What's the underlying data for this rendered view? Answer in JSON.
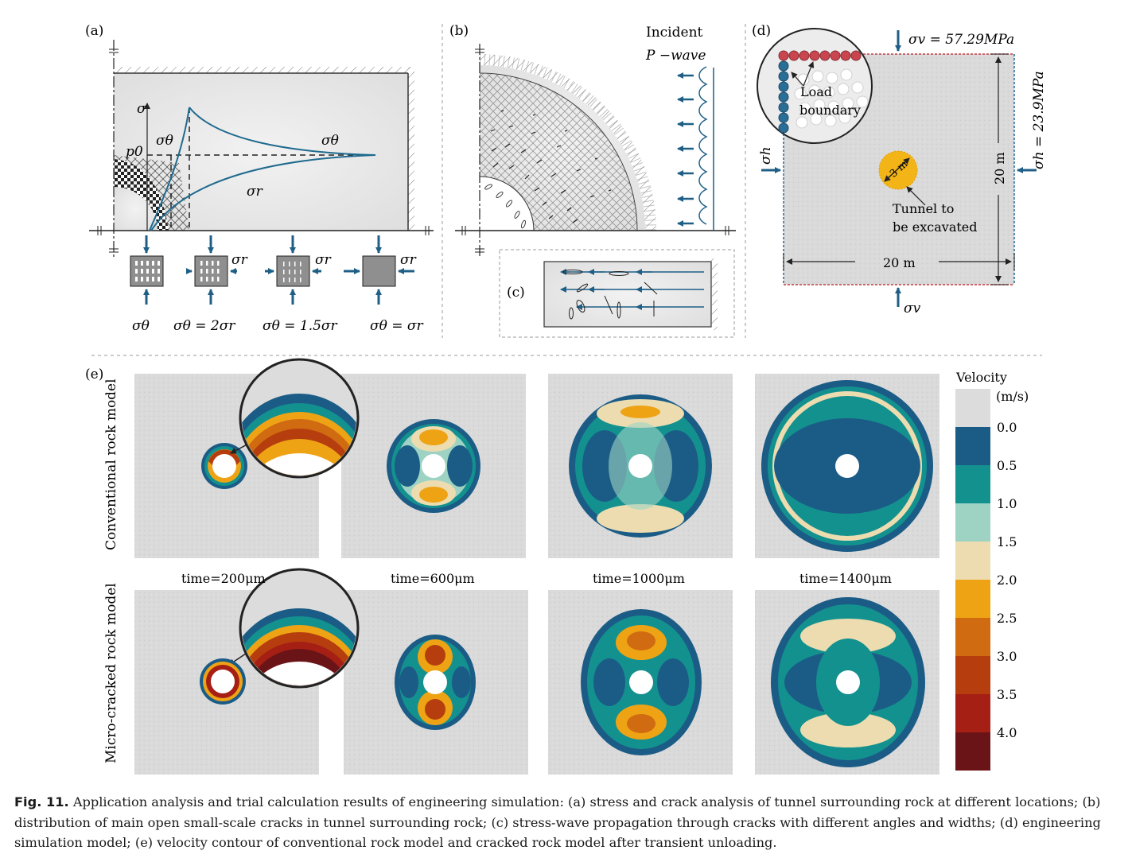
{
  "panels": {
    "a": {
      "label": "(a)",
      "axis_sigma": "σ",
      "sigma_theta": "σθ",
      "sigma_theta_right": "σθ",
      "p0": "p0",
      "sigma_r": "σr",
      "elements": [
        {
          "side_label": "",
          "caption": "σθ"
        },
        {
          "side_label": "σr",
          "caption": "σθ = 2σr"
        },
        {
          "side_label": "σr",
          "caption": "σθ = 1.5σr"
        },
        {
          "side_label": "σr",
          "caption": "σθ = σr"
        }
      ]
    },
    "b": {
      "label": "(b)",
      "incident_line1": "Incident",
      "incident_line2": "P −wave"
    },
    "c": {
      "label": "(c)"
    },
    "d": {
      "label": "(d)",
      "sigma_v_top": "σv = 57.29MPa",
      "sigma_h_right": "σh = 23.9MPa",
      "sigma_h_left": "σh",
      "sigma_v_bottom": "σv",
      "load_boundary": [
        "Load",
        "boundary"
      ],
      "tunnel_diam": "3 m",
      "tunnel_label": [
        "Tunnel  to",
        "be excavated"
      ],
      "width": "20 m",
      "height": "20 m"
    },
    "e": {
      "label": "(e)",
      "row_labels": [
        "Conventional  rock model",
        "Micro-cracked rock model"
      ],
      "times": [
        "time=200μm",
        "time=600μm",
        "time=1000μm",
        "time=1400μm"
      ],
      "colorbar": {
        "title_line1": "Velocity",
        "title_line2": "(m/s)",
        "ticks": [
          "0.0",
          "0.5",
          "1.0",
          "1.5",
          "2.0",
          "2.5",
          "3.0",
          "3.5",
          "4.0"
        ],
        "colors": [
          "#dcdcdc",
          "#1b5c86",
          "#13918f",
          "#9ed3c4",
          "#ecdcb0",
          "#eea315",
          "#d06b11",
          "#b63d0e",
          "#a51f15",
          "#6a1418"
        ]
      }
    }
  },
  "caption": {
    "label": "Fig. 11.",
    "text": "Application analysis and trial calculation results of engineering simulation: (a) stress and crack analysis of tunnel surrounding rock at different locations; (b) distribution of main open small-scale cracks in tunnel surrounding rock; (c) stress-wave propagation through cracks with different angles and widths; (d) engineering simulation model; (e) velocity contour of conventional rock model and cracked rock model after transient unloading."
  }
}
